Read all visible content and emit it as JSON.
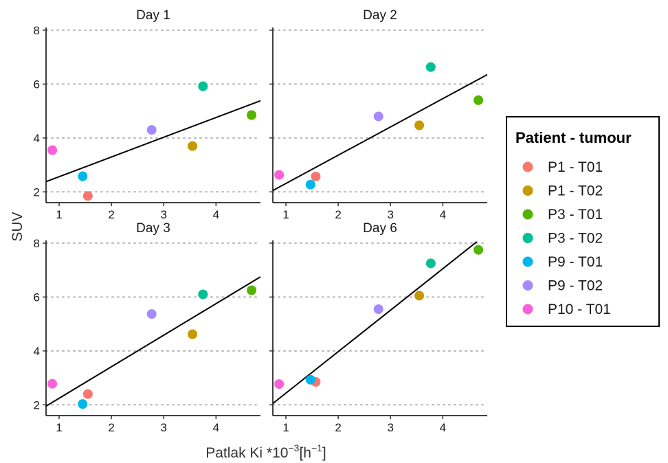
{
  "chart_data": {
    "type": "scatter",
    "xlabel": "Patlak Ki *10",
    "xlabel_sup": "−3",
    "xlabel_tail": "[h",
    "xlabel_tail_sup": "−1",
    "xlabel_end": "]",
    "ylabel": "SUV",
    "xlim": [
      0.75,
      4.85
    ],
    "ylim": [
      1.6,
      8.1
    ],
    "x_ticks": [
      1,
      2,
      3,
      4
    ],
    "x_tick_labels": [
      "1",
      "2",
      "3",
      "4"
    ],
    "y_ticks": [
      2,
      4,
      6,
      8
    ],
    "y_tick_labels": [
      "2",
      "4",
      "6",
      "8"
    ],
    "grid": "horizontal dotted",
    "legend": {
      "title": "Patient - tumour",
      "position": "right",
      "entries": [
        {
          "label": "P1 - T01",
          "color": "#F8766D"
        },
        {
          "label": "P1 - T02",
          "color": "#C49A00"
        },
        {
          "label": "P3 - T01",
          "color": "#53B400"
        },
        {
          "label": "P3 - T02",
          "color": "#00C094"
        },
        {
          "label": "P9 - T01",
          "color": "#00B6EB"
        },
        {
          "label": "P9 - T02",
          "color": "#A58AFF"
        },
        {
          "label": "P10 - T01",
          "color": "#FB61D7"
        }
      ]
    },
    "facets": [
      {
        "title": "Day 1",
        "points": [
          {
            "series": "P1 - T01",
            "x": 1.55,
            "y": 1.85
          },
          {
            "series": "P1 - T02",
            "x": 3.55,
            "y": 3.7
          },
          {
            "series": "P3 - T01",
            "x": 4.68,
            "y": 4.85
          },
          {
            "series": "P3 - T02",
            "x": 3.75,
            "y": 5.92
          },
          {
            "series": "P9 - T01",
            "x": 1.45,
            "y": 2.58
          },
          {
            "series": "P9 - T02",
            "x": 2.77,
            "y": 4.3
          },
          {
            "series": "P10 - T01",
            "x": 0.87,
            "y": 3.55
          }
        ],
        "fit": {
          "x": [
            0.75,
            4.85
          ],
          "y": [
            2.38,
            5.38
          ]
        }
      },
      {
        "title": "Day 2",
        "points": [
          {
            "series": "P1 - T01",
            "x": 1.57,
            "y": 2.57
          },
          {
            "series": "P1 - T02",
            "x": 3.55,
            "y": 4.47
          },
          {
            "series": "P3 - T01",
            "x": 4.68,
            "y": 5.4
          },
          {
            "series": "P3 - T02",
            "x": 3.77,
            "y": 6.63
          },
          {
            "series": "P9 - T01",
            "x": 1.47,
            "y": 2.27
          },
          {
            "series": "P9 - T02",
            "x": 2.77,
            "y": 4.8
          },
          {
            "series": "P10 - T01",
            "x": 0.87,
            "y": 2.63
          }
        ],
        "fit": {
          "x": [
            0.75,
            4.85
          ],
          "y": [
            2.05,
            6.35
          ]
        }
      },
      {
        "title": "Day 3",
        "points": [
          {
            "series": "P1 - T01",
            "x": 1.55,
            "y": 2.4
          },
          {
            "series": "P1 - T02",
            "x": 3.55,
            "y": 4.62
          },
          {
            "series": "P3 - T01",
            "x": 4.68,
            "y": 6.25
          },
          {
            "series": "P3 - T02",
            "x": 3.75,
            "y": 6.1
          },
          {
            "series": "P9 - T01",
            "x": 1.45,
            "y": 2.03
          },
          {
            "series": "P9 - T02",
            "x": 2.77,
            "y": 5.37
          },
          {
            "series": "P10 - T01",
            "x": 0.87,
            "y": 2.78
          }
        ],
        "fit": {
          "x": [
            0.75,
            4.85
          ],
          "y": [
            1.95,
            6.75
          ]
        }
      },
      {
        "title": "Day 6",
        "points": [
          {
            "series": "P1 - T01",
            "x": 1.57,
            "y": 2.85
          },
          {
            "series": "P1 - T02",
            "x": 3.55,
            "y": 6.05
          },
          {
            "series": "P3 - T01",
            "x": 4.68,
            "y": 7.75
          },
          {
            "series": "P3 - T02",
            "x": 3.77,
            "y": 7.25
          },
          {
            "series": "P9 - T01",
            "x": 1.47,
            "y": 2.93
          },
          {
            "series": "P9 - T02",
            "x": 2.77,
            "y": 5.55
          },
          {
            "series": "P10 - T01",
            "x": 0.87,
            "y": 2.77
          }
        ],
        "fit": {
          "x": [
            0.75,
            4.65
          ],
          "y": [
            2.05,
            8.05
          ]
        }
      }
    ]
  }
}
